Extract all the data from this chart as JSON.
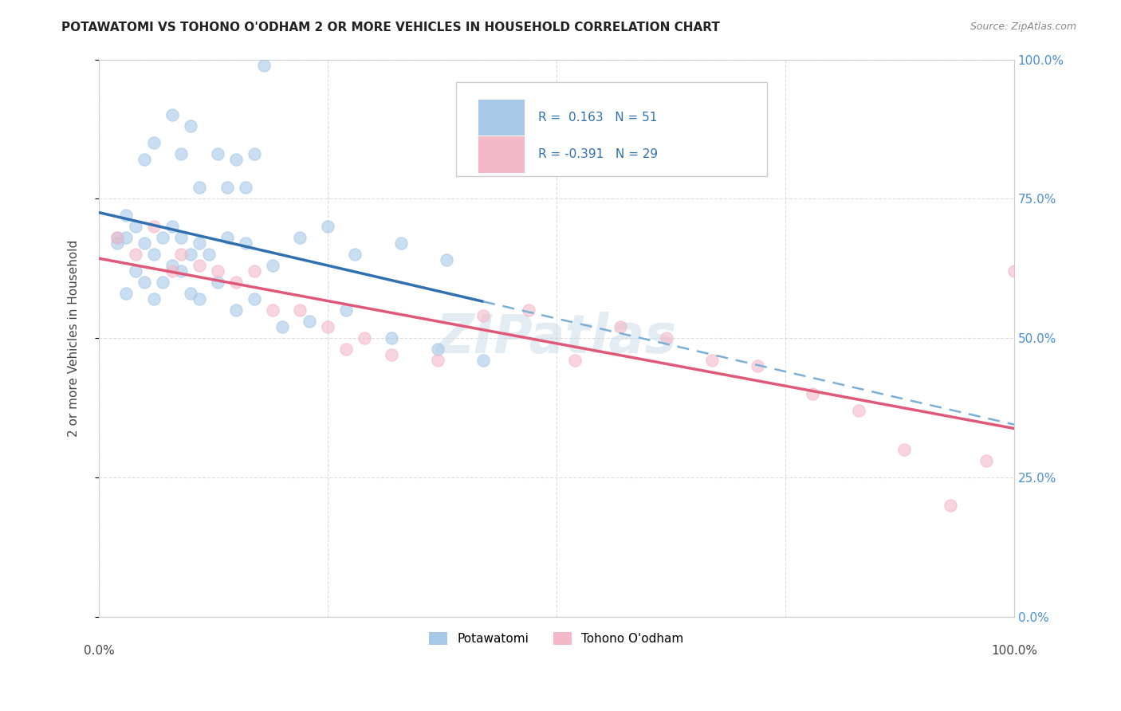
{
  "title": "POTAWATOMI VS TOHONO O'ODHAM 2 OR MORE VEHICLES IN HOUSEHOLD CORRELATION CHART",
  "source": "Source: ZipAtlas.com",
  "ylabel": "2 or more Vehicles in Household",
  "ytick_values": [
    0,
    25,
    50,
    75,
    100
  ],
  "xlim": [
    0,
    100
  ],
  "ylim": [
    0,
    100
  ],
  "watermark": "ZIPatlas",
  "legend_label1": "Potawatomi",
  "legend_label2": "Tohono O'odham",
  "R1": 0.163,
  "N1": 51,
  "R2": -0.391,
  "N2": 29,
  "color_blue": "#a8c8e8",
  "color_pink": "#f4b8c8",
  "line_blue": "#3070b0",
  "line_blue_dash": "#7ab0d8",
  "line_pink": "#e05878",
  "potawatomi_x": [
    2,
    3,
    5,
    6,
    8,
    9,
    10,
    11,
    13,
    14,
    15,
    16,
    17,
    18,
    2,
    3,
    4,
    5,
    6,
    7,
    8,
    9,
    10,
    11,
    12,
    14,
    16,
    19,
    22,
    25,
    28,
    33,
    38,
    3,
    4,
    5,
    6,
    7,
    8,
    9,
    10,
    11,
    13,
    15,
    17,
    20,
    23,
    27,
    32,
    37,
    42
  ],
  "potawatomi_y": [
    68,
    72,
    82,
    85,
    90,
    83,
    88,
    77,
    83,
    77,
    82,
    77,
    83,
    99,
    67,
    68,
    70,
    67,
    65,
    68,
    70,
    68,
    65,
    67,
    65,
    68,
    67,
    63,
    68,
    70,
    65,
    67,
    64,
    58,
    62,
    60,
    57,
    60,
    63,
    62,
    58,
    57,
    60,
    55,
    57,
    52,
    53,
    55,
    50,
    48,
    46
  ],
  "tohono_x": [
    2,
    4,
    6,
    8,
    9,
    11,
    13,
    15,
    17,
    19,
    22,
    25,
    27,
    29,
    32,
    37,
    42,
    47,
    52,
    57,
    62,
    67,
    72,
    78,
    83,
    88,
    93,
    97,
    100
  ],
  "tohono_y": [
    68,
    65,
    70,
    62,
    65,
    63,
    62,
    60,
    62,
    55,
    55,
    52,
    48,
    50,
    47,
    46,
    54,
    55,
    46,
    52,
    50,
    46,
    45,
    40,
    37,
    30,
    20,
    28,
    62
  ],
  "blue_solid_x_end": 42,
  "blue_dash_x_start": 42,
  "blue_dash_x_end": 100
}
